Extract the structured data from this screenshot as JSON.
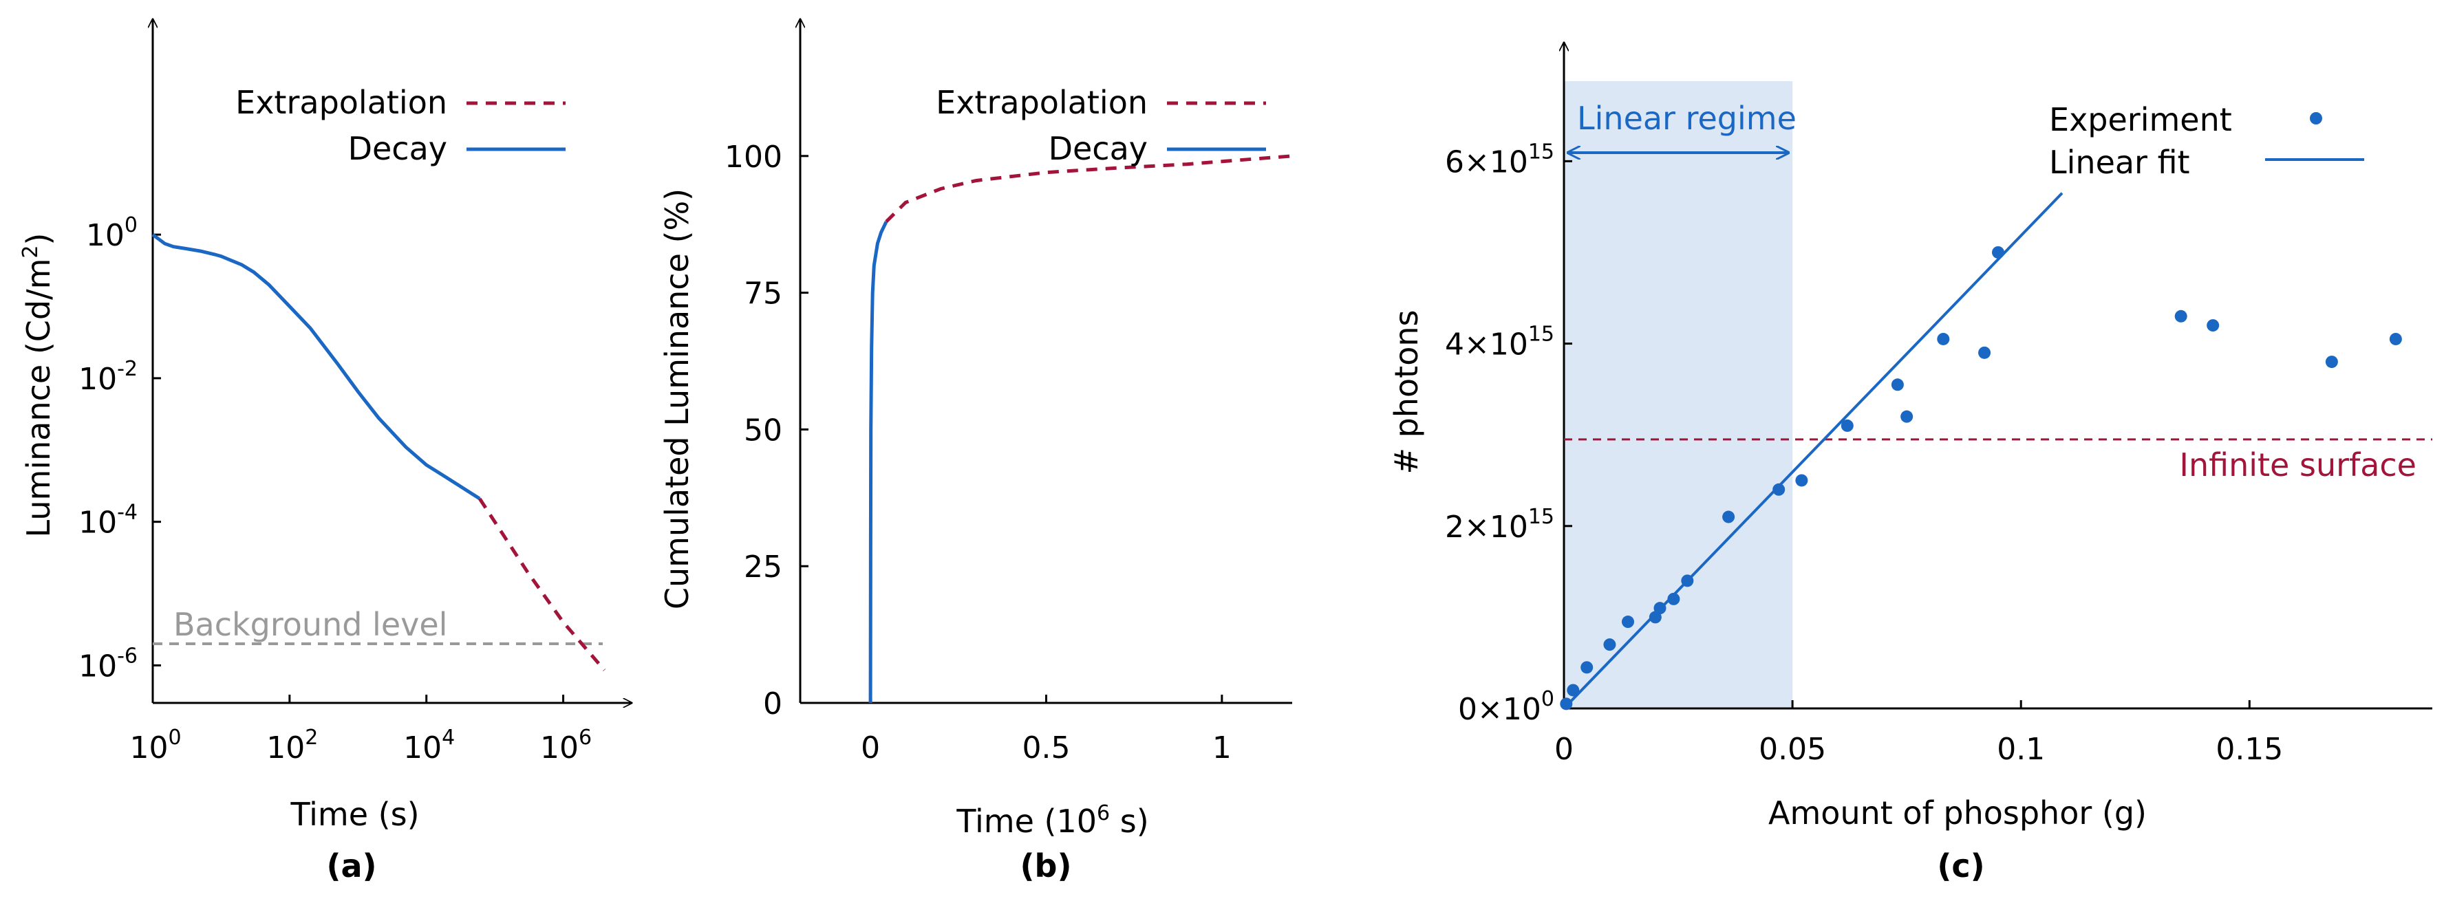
{
  "colors": {
    "decay": "#1a67c4",
    "extrapolation": "#a3143a",
    "background": "#999999",
    "fit": "#1a67c4",
    "regime_fill": "#dce7f5"
  },
  "chart_data": [
    {
      "panel": "(a)",
      "type": "line",
      "xlabel": "Time (s)",
      "ylabel": "Luminance (Cd/m²)",
      "xscale": "log",
      "yscale": "log",
      "xlim": [
        1,
        10000000
      ],
      "ylim": [
        3e-07,
        1000
      ],
      "xticks": [
        {
          "base": "10",
          "exp": "0",
          "value": 1
        },
        {
          "base": "10",
          "exp": "2",
          "value": 100
        },
        {
          "base": "10",
          "exp": "4",
          "value": 10000
        },
        {
          "base": "10",
          "exp": "6",
          "value": 1000000
        }
      ],
      "yticks": [
        {
          "base": "10",
          "exp": "0",
          "value": 1
        },
        {
          "base": "10",
          "exp": "-2",
          "value": 0.01
        },
        {
          "base": "10",
          "exp": "-4",
          "value": 0.0001
        },
        {
          "base": "10",
          "exp": "-6",
          "value": 1e-06
        }
      ],
      "legend": [
        "Extrapolation",
        "Decay"
      ],
      "series": [
        {
          "name": "Decay",
          "style": "solid",
          "x": [
            1,
            1.5,
            2,
            3,
            5,
            8,
            10,
            20,
            30,
            50,
            100,
            200,
            500,
            1000,
            2000,
            5000,
            10000,
            20000,
            60000
          ],
          "y": [
            1.0,
            0.75,
            0.68,
            0.64,
            0.59,
            0.53,
            0.5,
            0.38,
            0.3,
            0.2,
            0.1,
            0.05,
            0.016,
            0.0065,
            0.0028,
            0.0011,
            0.00062,
            0.00041,
            0.00021
          ]
        },
        {
          "name": "Extrapolation",
          "style": "dashed",
          "x": [
            60000,
            300000,
            1000000,
            4000000
          ],
          "y": [
            0.00021,
            2e-05,
            4e-06,
            8.6e-07
          ]
        },
        {
          "name": "Background level",
          "style": "dashed",
          "x": [
            1,
            7000000
          ],
          "y": [
            1e-06,
            1e-06
          ]
        }
      ],
      "annotations": [
        {
          "text": "Background level"
        }
      ]
    },
    {
      "panel": "(b)",
      "type": "line",
      "xlabel": "Time (10⁶ s)",
      "ylabel": "Cumulated Luminance (%)",
      "xlim": [
        -0.2,
        1.2
      ],
      "ylim": [
        0,
        125
      ],
      "xticks": [
        "0",
        "0.5",
        "1"
      ],
      "xtick_values": [
        0,
        0.5,
        1
      ],
      "yticks": [
        "0",
        "25",
        "50",
        "75",
        "100"
      ],
      "ytick_values": [
        0,
        25,
        50,
        75,
        100
      ],
      "legend": [
        "Extrapolation",
        "Decay"
      ],
      "series": [
        {
          "name": "Decay",
          "style": "solid",
          "x": [
            0,
            0.0005,
            0.001,
            0.003,
            0.006,
            0.01,
            0.02,
            0.03,
            0.045
          ],
          "y": [
            0,
            30,
            50,
            65,
            75,
            80,
            84,
            86,
            88
          ]
        },
        {
          "name": "Extrapolation",
          "style": "dashed",
          "x": [
            0.045,
            0.1,
            0.2,
            0.3,
            0.5,
            0.7,
            0.9,
            1.2
          ],
          "y": [
            88,
            91.5,
            94,
            95.5,
            97,
            97.8,
            98.5,
            100
          ]
        }
      ]
    },
    {
      "panel": "(c)",
      "type": "scatter",
      "xlabel": "Amount of phosphor (g)",
      "ylabel": "# photons",
      "xlim": [
        0,
        0.19
      ],
      "ylim": [
        0,
        7300000000000000
      ],
      "xticks": [
        "0",
        "0.05",
        "0.1",
        "0.15"
      ],
      "xtick_values": [
        0,
        0.05,
        0.1,
        0.15
      ],
      "yticks": [
        {
          "mant": "0",
          "exp": "0",
          "value": 0
        },
        {
          "mant": "2",
          "exp": "15",
          "value": 2000000000000000
        },
        {
          "mant": "4",
          "exp": "15",
          "value": 4000000000000000
        },
        {
          "mant": "6",
          "exp": "15",
          "value": 6000000000000000
        }
      ],
      "legend": [
        "Experiment",
        "Linear fit"
      ],
      "series": [
        {
          "name": "Experiment",
          "style": "points",
          "x": [
            0.0005,
            0.002,
            0.005,
            0.01,
            0.014,
            0.02,
            0.021,
            0.024,
            0.027,
            0.036,
            0.047,
            0.052,
            0.062,
            0.073,
            0.075,
            0.083,
            0.092,
            0.095,
            0.135,
            0.142,
            0.168,
            0.182
          ],
          "y": [
            50000000000000,
            200000000000000,
            450000000000000,
            700000000000000,
            950000000000000,
            1000000000000000,
            1100000000000000,
            1200000000000000,
            1400000000000000,
            2100000000000000,
            2400000000000000,
            2500000000000000,
            3100000000000000,
            3550000000000000,
            3200000000000000,
            4050000000000000,
            3900000000000000,
            5000000000000000,
            4300000000000000,
            4200000000000000,
            3800000000000000,
            4050000000000000
          ]
        },
        {
          "name": "Linear fit",
          "style": "solid",
          "x": [
            0,
            0.109
          ],
          "y": [
            0,
            5650000000000000
          ]
        },
        {
          "name": "Infinite surface",
          "style": "dashed",
          "x": [
            0,
            0.19
          ],
          "y": [
            2950000000000000,
            2950000000000000
          ]
        }
      ],
      "annotations": [
        {
          "text": "Linear regime",
          "x_range": [
            0,
            0.05
          ]
        },
        {
          "text": "Infinite surface",
          "y": 2950000000000000
        }
      ]
    }
  ]
}
